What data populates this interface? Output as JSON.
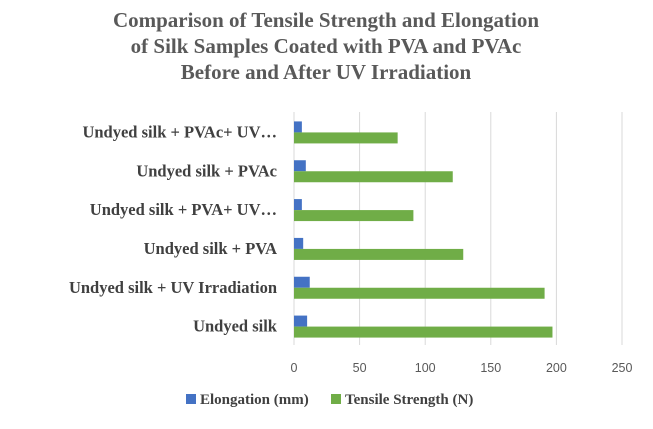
{
  "chart_data": {
    "type": "bar",
    "orientation": "horizontal",
    "title": "Comparison of Tensile Strength and Elongation of Silk Samples Coated with PVA and PVAc Before and After UV Irradiation",
    "title_lines": [
      "Comparison of Tensile Strength and Elongation",
      "of Silk Samples Coated with PVA and PVAc",
      "Before and After UV Irradiation"
    ],
    "categories": [
      "Undyed silk",
      "Undyed silk + UV Irradiation",
      "Undyed silk + PVA",
      "Undyed silk + PVA+ UV…",
      "Undyed silk + PVAc",
      "Undyed silk + PVAc+ UV…"
    ],
    "series": [
      {
        "name": "Elongation (mm)",
        "color": "#4472c4",
        "values": [
          10,
          12,
          7,
          6,
          9,
          6
        ]
      },
      {
        "name": "Tensile Strength (N)",
        "color": "#70ad47",
        "values": [
          197,
          191,
          129,
          91,
          121,
          79
        ]
      }
    ],
    "xlim": [
      0,
      250
    ],
    "xticks": [
      0,
      50,
      100,
      150,
      200,
      250
    ],
    "xlabel": "",
    "ylabel": "",
    "grid": true,
    "legend": "bottom"
  }
}
